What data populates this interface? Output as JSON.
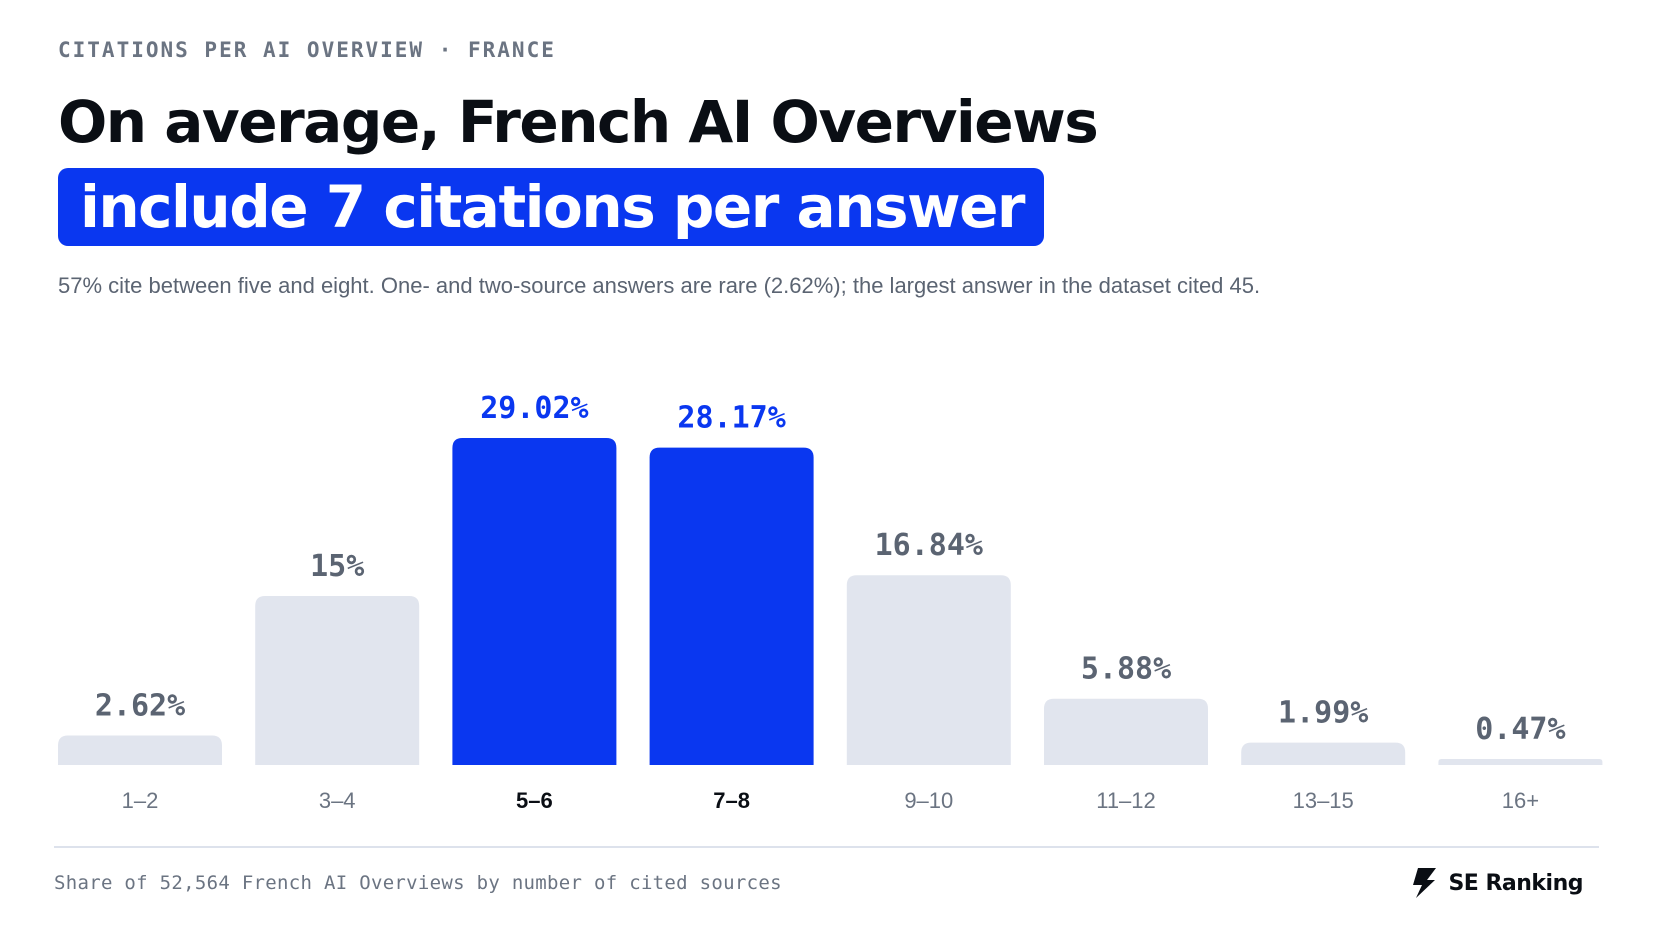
{
  "header": {
    "kicker": "CITATIONS PER AI OVERVIEW · FRANCE",
    "title_line1": "On average, French AI Overviews",
    "title_line2": "include 7 citations per answer",
    "subtitle": "57% cite between five and eight. One- and two-source answers are rare (2.62%); the largest answer in the dataset cited 45."
  },
  "footer": {
    "note": "Share of 52,564 French AI Overviews by number of cited sources",
    "brand": "SE Ranking",
    "brand_icon": "lightning-bolt-icon"
  },
  "colors": {
    "highlight": "#0a37f0",
    "muted_bar": "#e1e5ee",
    "muted_label": "#5b6472",
    "axis_label": "#6b7482",
    "axis_label_bold": "#0a0e14"
  },
  "chart_data": {
    "type": "bar",
    "categories": [
      "1–2",
      "3–4",
      "5–6",
      "7–8",
      "9–10",
      "11–12",
      "13–15",
      "16+"
    ],
    "values": [
      2.62,
      15,
      29.02,
      28.17,
      16.84,
      5.88,
      1.99,
      0.47
    ],
    "value_labels": [
      "2.62%",
      "15%",
      "29.02%",
      "28.17%",
      "16.84%",
      "5.88%",
      "1.99%",
      "0.47%"
    ],
    "highlighted": [
      "5–6",
      "7–8"
    ],
    "ylim": [
      0,
      29.02
    ],
    "grid": false,
    "legend": "none"
  }
}
